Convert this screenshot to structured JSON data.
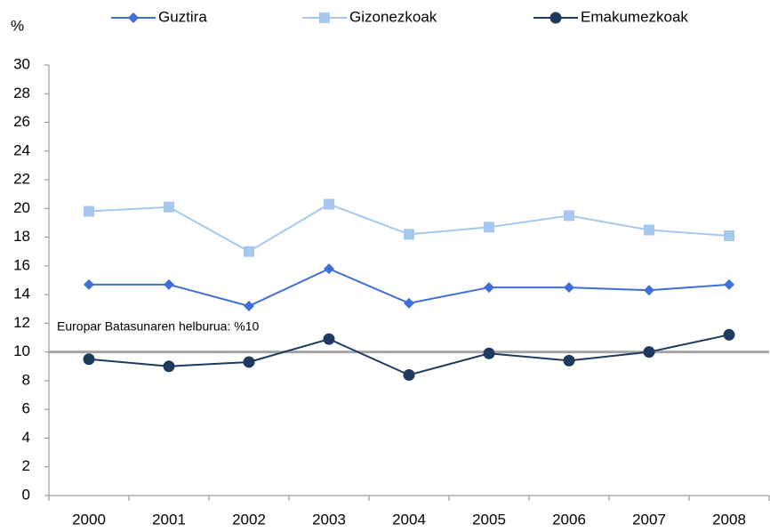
{
  "chart_data": {
    "type": "line",
    "y_label": "%",
    "categories": [
      "2000",
      "2001",
      "2002",
      "2003",
      "2004",
      "2005",
      "2006",
      "2007",
      "2008"
    ],
    "series": [
      {
        "name": "Guztira",
        "color": "#3f6fd8",
        "marker": "diamond",
        "values": [
          14.7,
          14.7,
          13.2,
          15.8,
          13.4,
          14.5,
          14.5,
          14.3,
          14.7
        ]
      },
      {
        "name": "Gizonezkoak",
        "color": "#a6c8f0",
        "marker": "square",
        "values": [
          19.8,
          20.1,
          17.0,
          20.3,
          18.2,
          18.7,
          19.5,
          18.5,
          18.1
        ]
      },
      {
        "name": "Emakumezkoak",
        "color": "#1f3a5f",
        "marker": "circle",
        "values": [
          9.5,
          9.0,
          9.3,
          10.9,
          8.4,
          9.9,
          9.4,
          10.0,
          11.2
        ]
      }
    ],
    "reference_line": {
      "value": 10,
      "label": "Europar Batasunaren  helburua:  %10",
      "color": "#a6a6a6"
    },
    "ylim": [
      0,
      30
    ],
    "yticks": [
      0,
      2,
      4,
      6,
      8,
      10,
      12,
      14,
      16,
      18,
      20,
      22,
      24,
      26,
      28,
      30
    ],
    "grid": false,
    "legend": "top"
  }
}
